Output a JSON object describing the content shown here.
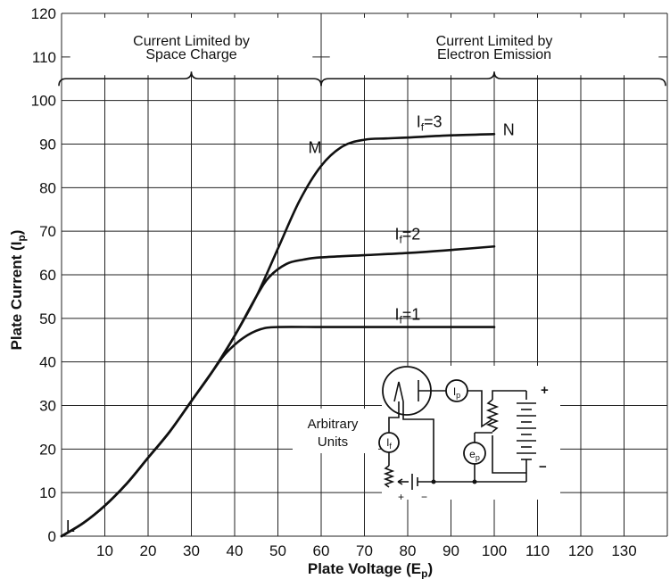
{
  "chart_data": {
    "type": "line",
    "xlabel": "Plate Voltage (E",
    "xlabel_sub": "p",
    "ylabel": "Plate Current (I",
    "ylabel_sub": "p",
    "xlim": [
      0,
      140
    ],
    "ylim": [
      0,
      120
    ],
    "x_ticks": [
      10,
      20,
      30,
      40,
      50,
      60,
      70,
      80,
      90,
      100,
      110,
      120,
      130
    ],
    "y_ticks": [
      0,
      10,
      20,
      30,
      40,
      50,
      60,
      70,
      80,
      90,
      100,
      110,
      120
    ],
    "grid": true,
    "regions": [
      {
        "line1": "Current Limited by",
        "line2": "Space Charge",
        "x_range": [
          0,
          60
        ]
      },
      {
        "line1": "Current Limited by",
        "line2": "Electron Emission",
        "x_range": [
          60,
          140
        ]
      }
    ],
    "series": [
      {
        "name": "I",
        "sub": "f",
        "suffix": "=1",
        "label_x": 77,
        "x": [
          0,
          5,
          10,
          15,
          20,
          25,
          30,
          35,
          38,
          42,
          46,
          50,
          60,
          70,
          80,
          90,
          100
        ],
        "y": [
          0,
          3,
          7,
          12,
          18,
          24,
          31,
          38,
          42,
          45.5,
          47.5,
          48,
          48,
          48,
          48,
          48,
          48
        ]
      },
      {
        "name": "I",
        "sub": "f",
        "suffix": "=2",
        "label_x": 77,
        "x": [
          0,
          5,
          10,
          15,
          20,
          25,
          30,
          35,
          40,
          45,
          48,
          52,
          56,
          60,
          70,
          80,
          90,
          100
        ],
        "y": [
          0,
          3,
          7,
          12,
          18,
          24,
          31,
          38,
          46,
          55,
          59.5,
          62.5,
          63.5,
          64,
          64.5,
          65,
          65.7,
          66.5
        ]
      },
      {
        "name": "I",
        "sub": "f",
        "suffix": "=3",
        "label_x": 82,
        "x": [
          0,
          5,
          10,
          15,
          20,
          25,
          30,
          35,
          40,
          45,
          50,
          55,
          60,
          65,
          70,
          75,
          80,
          90,
          100
        ],
        "y": [
          0,
          3,
          7,
          12,
          18,
          24,
          31,
          38,
          46,
          55,
          66,
          77,
          85,
          89.5,
          91,
          91.3,
          91.5,
          92,
          92.3
        ]
      }
    ],
    "annotations": [
      {
        "text": "L",
        "x": 1,
        "y": 1
      },
      {
        "text": "M",
        "x": 57,
        "y": 88
      },
      {
        "text": "N",
        "x": 102,
        "y": 92
      }
    ]
  },
  "inset": {
    "text_line1": "Arbitrary",
    "text_line2": "Units",
    "meter_plate_current": "I",
    "meter_plate_current_sub": "p",
    "meter_filament_current": "I",
    "meter_filament_current_sub": "f",
    "meter_plate_voltage": "e",
    "meter_plate_voltage_sub": "p",
    "plus": "+",
    "minus": "−"
  }
}
